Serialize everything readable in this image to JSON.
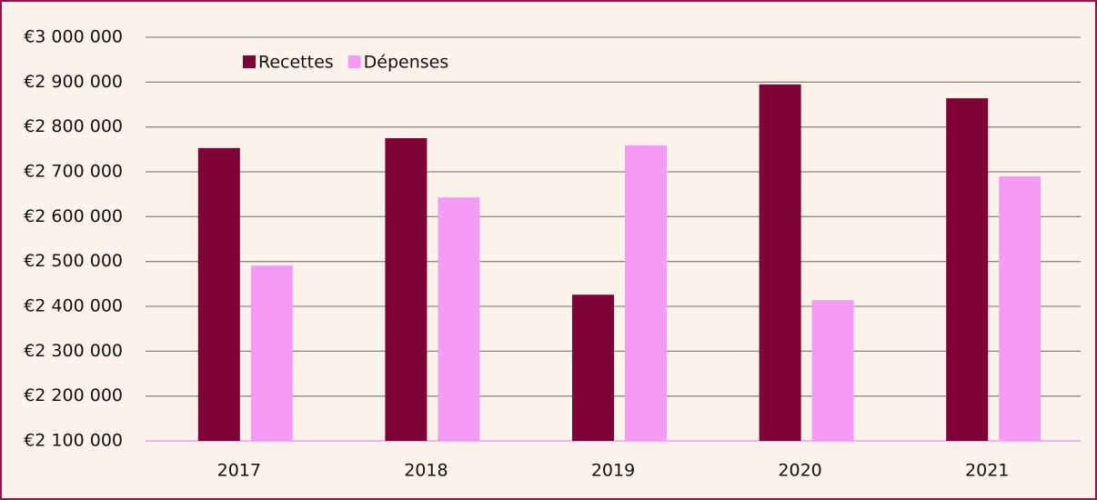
{
  "chart_data": {
    "type": "bar",
    "categories": [
      "2017",
      "2018",
      "2019",
      "2020",
      "2021"
    ],
    "series": [
      {
        "name": "Recettes",
        "color": "#7d0037",
        "values": [
          2753000,
          2775000,
          2426000,
          2895000,
          2864000
        ]
      },
      {
        "name": "Dépenses",
        "color": "#f49cf5",
        "values": [
          2491000,
          2643000,
          2759000,
          2414000,
          2690000
        ]
      }
    ],
    "ylim": [
      2100000,
      3000000
    ],
    "yticks": [
      {
        "value": 2100000,
        "label": "€2 100 000"
      },
      {
        "value": 2200000,
        "label": "€2 200 000"
      },
      {
        "value": 2300000,
        "label": "€2 300 000"
      },
      {
        "value": 2400000,
        "label": "€2 400 000"
      },
      {
        "value": 2500000,
        "label": "€2 500 000"
      },
      {
        "value": 2600000,
        "label": "€2 600 000"
      },
      {
        "value": 2700000,
        "label": "€2 700 000"
      },
      {
        "value": 2800000,
        "label": "€2 800 000"
      },
      {
        "value": 2900000,
        "label": "€2 900 000"
      },
      {
        "value": 3000000,
        "label": "€3 000 000"
      }
    ],
    "grid": true,
    "legend": "top-left"
  }
}
